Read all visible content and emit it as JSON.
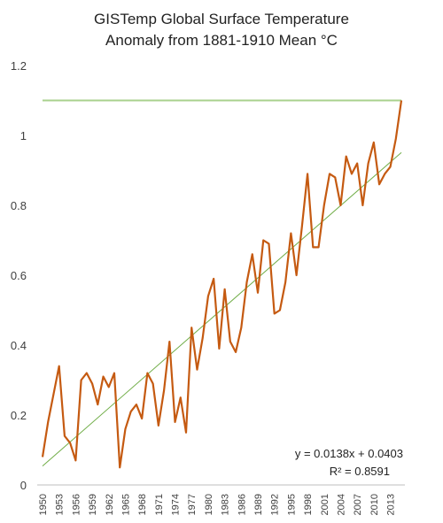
{
  "chart_data": {
    "type": "line",
    "title": [
      "GISTemp Global Surface Temperature",
      "Anomaly from 1881-1910 Mean °C"
    ],
    "categories": [
      "1950",
      null,
      null,
      "1953",
      null,
      null,
      "1956",
      null,
      null,
      "1959",
      null,
      null,
      "1962",
      null,
      null,
      "1965",
      null,
      null,
      "1968",
      null,
      null,
      "1971",
      null,
      null,
      "1974",
      null,
      null,
      "1977",
      null,
      null,
      "1980",
      null,
      null,
      "1983",
      null,
      null,
      "1986",
      null,
      null,
      "1989",
      null,
      null,
      "1992",
      null,
      null,
      "1995",
      null,
      null,
      "1998",
      null,
      null,
      "2001",
      null,
      null,
      "2004",
      null,
      null,
      "2007",
      null,
      null,
      "2010",
      null,
      null,
      "2013",
      null,
      null
    ],
    "series": [
      {
        "color": "#c55a11",
        "values": [
          0.08,
          0.18,
          0.26,
          0.34,
          0.14,
          0.12,
          0.07,
          0.3,
          0.32,
          0.29,
          0.23,
          0.31,
          0.28,
          0.32,
          0.05,
          0.16,
          0.21,
          0.23,
          0.19,
          0.32,
          0.29,
          0.17,
          0.27,
          0.41,
          0.18,
          0.25,
          0.15,
          0.45,
          0.33,
          0.42,
          0.54,
          0.59,
          0.39,
          0.56,
          0.41,
          0.38,
          0.45,
          0.58,
          0.66,
          0.55,
          0.7,
          0.69,
          0.49,
          0.5,
          0.58,
          0.72,
          0.6,
          0.74,
          0.89,
          0.68,
          0.68,
          0.8,
          0.89,
          0.88,
          0.8,
          0.94,
          0.89,
          0.92,
          0.8,
          0.92,
          0.98,
          0.86,
          0.89,
          0.91,
          0.99,
          1.1
        ]
      }
    ],
    "reference_line": {
      "value": 1.1,
      "color": "#a9d18e"
    },
    "trendline": {
      "slope": 0.0138,
      "intercept": 0.0403,
      "color": "#70ad47",
      "equation": "y = 0.0138x + 0.0403",
      "r2_label": "R² = 0.8591"
    },
    "ylim": [
      0,
      1.2
    ],
    "yticks": [
      0,
      0.2,
      0.4,
      0.6,
      0.8,
      1,
      1.2
    ],
    "grid": false
  }
}
